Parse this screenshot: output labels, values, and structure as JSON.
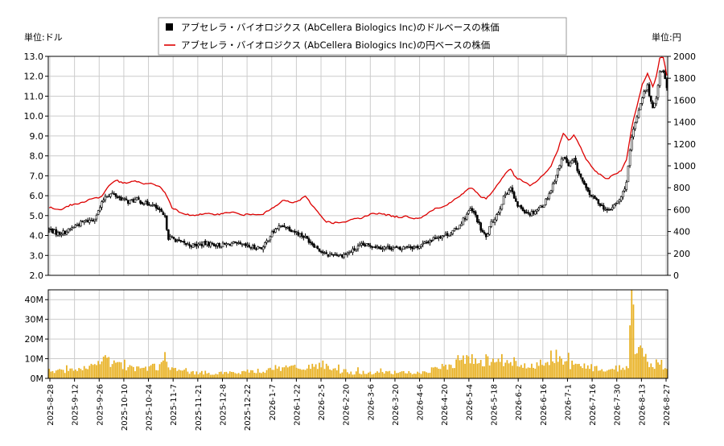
{
  "chart_data": {
    "type": "line",
    "legend": {
      "placement": "top-center",
      "items": [
        {
          "label": "アブセレラ・バイオロジクス (AbCellera Biologics Inc)のドルベースの株価",
          "color": "#000000",
          "marker": "square"
        },
        {
          "label": "アブセレラ・バイオロジクス (AbCellera Biologics Inc)の円ベースの株価",
          "color": "#dd0000",
          "marker": "line"
        }
      ]
    },
    "left_unit": "単位:ドル",
    "right_unit": "単位:円",
    "y_left": {
      "range": [
        2.0,
        13.0
      ],
      "ticks": [
        "2.0",
        "3.0",
        "4.0",
        "5.0",
        "6.0",
        "7.0",
        "8.0",
        "9.0",
        "10.0",
        "11.0",
        "12.0",
        "13.0"
      ]
    },
    "y_right": {
      "range": [
        0,
        2000
      ],
      "ticks": [
        "0",
        "200",
        "400",
        "600",
        "800",
        "1000",
        "1200",
        "1400",
        "1600",
        "1800",
        "2000"
      ]
    },
    "volume_axis": {
      "range": [
        0,
        45000000
      ],
      "ticks": [
        "0M",
        "10M",
        "20M",
        "30M",
        "40M"
      ]
    },
    "x_ticks": [
      "2025-8-28",
      "2025-9-12",
      "2025-9-26",
      "2025-10-10",
      "2025-10-24",
      "2025-11-7",
      "2025-11-21",
      "2025-12-8",
      "2025-12-22",
      "2026-1-7",
      "2026-1-22",
      "2026-2-5",
      "2026-2-20",
      "2026-3-6",
      "2026-3-20",
      "2026-4-6",
      "2026-4-20",
      "2026-5-4",
      "2026-5-18",
      "2026-6-2",
      "2026-6-16",
      "2026-7-1",
      "2026-7-16",
      "2026-7-30",
      "2026-8-13",
      "2026-8-27"
    ],
    "usd_anchors": [
      [
        0,
        4.3
      ],
      [
        5,
        4.1
      ],
      [
        10,
        4.2
      ],
      [
        15,
        4.5
      ],
      [
        20,
        4.7
      ],
      [
        25,
        4.8
      ],
      [
        28,
        5.2
      ],
      [
        32,
        6.0
      ],
      [
        36,
        6.1
      ],
      [
        40,
        5.9
      ],
      [
        45,
        5.7
      ],
      [
        50,
        5.8
      ],
      [
        55,
        5.6
      ],
      [
        58,
        5.6
      ],
      [
        62,
        5.3
      ],
      [
        66,
        4.9
      ],
      [
        68,
        3.9
      ],
      [
        72,
        3.8
      ],
      [
        76,
        3.6
      ],
      [
        82,
        3.5
      ],
      [
        90,
        3.6
      ],
      [
        98,
        3.5
      ],
      [
        104,
        3.6
      ],
      [
        110,
        3.5
      ],
      [
        116,
        3.4
      ],
      [
        122,
        3.4
      ],
      [
        126,
        4.0
      ],
      [
        130,
        4.4
      ],
      [
        134,
        4.5
      ],
      [
        138,
        4.3
      ],
      [
        142,
        4.1
      ],
      [
        146,
        3.9
      ],
      [
        150,
        3.6
      ],
      [
        154,
        3.3
      ],
      [
        158,
        3.0
      ],
      [
        162,
        3.1
      ],
      [
        166,
        3.0
      ],
      [
        170,
        3.1
      ],
      [
        174,
        3.3
      ],
      [
        178,
        3.5
      ],
      [
        184,
        3.5
      ],
      [
        190,
        3.4
      ],
      [
        196,
        3.4
      ],
      [
        200,
        3.3
      ],
      [
        204,
        3.5
      ],
      [
        208,
        3.4
      ],
      [
        212,
        3.5
      ],
      [
        216,
        3.7
      ],
      [
        220,
        3.9
      ],
      [
        224,
        4.0
      ],
      [
        228,
        4.1
      ],
      [
        232,
        4.3
      ],
      [
        236,
        4.8
      ],
      [
        240,
        5.3
      ],
      [
        243,
        5.0
      ],
      [
        246,
        4.3
      ],
      [
        249,
        3.9
      ],
      [
        252,
        4.6
      ],
      [
        256,
        5.2
      ],
      [
        260,
        6.1
      ],
      [
        263,
        6.4
      ],
      [
        266,
        5.6
      ],
      [
        270,
        5.3
      ],
      [
        274,
        5.1
      ],
      [
        278,
        5.3
      ],
      [
        282,
        5.6
      ],
      [
        286,
        6.3
      ],
      [
        290,
        7.3
      ],
      [
        293,
        8.0
      ],
      [
        296,
        7.5
      ],
      [
        299,
        7.8
      ],
      [
        302,
        7.1
      ],
      [
        306,
        6.3
      ],
      [
        310,
        5.9
      ],
      [
        314,
        5.6
      ],
      [
        318,
        5.2
      ],
      [
        322,
        5.5
      ],
      [
        326,
        5.9
      ],
      [
        329,
        6.7
      ],
      [
        332,
        8.9
      ],
      [
        335,
        10.0
      ],
      [
        338,
        11.0
      ],
      [
        341,
        11.5
      ],
      [
        344,
        10.3
      ],
      [
        346,
        11.0
      ],
      [
        348,
        12.2
      ],
      [
        350,
        12.3
      ],
      [
        352,
        11.5
      ]
    ],
    "jpy_anchors": [
      [
        0,
        620
      ],
      [
        6,
        600
      ],
      [
        12,
        640
      ],
      [
        18,
        660
      ],
      [
        24,
        700
      ],
      [
        28,
        710
      ],
      [
        30,
        720
      ],
      [
        34,
        820
      ],
      [
        38,
        870
      ],
      [
        42,
        840
      ],
      [
        46,
        850
      ],
      [
        50,
        860
      ],
      [
        54,
        830
      ],
      [
        58,
        840
      ],
      [
        62,
        820
      ],
      [
        66,
        760
      ],
      [
        70,
        620
      ],
      [
        76,
        560
      ],
      [
        82,
        550
      ],
      [
        90,
        560
      ],
      [
        98,
        560
      ],
      [
        104,
        580
      ],
      [
        110,
        550
      ],
      [
        116,
        560
      ],
      [
        122,
        560
      ],
      [
        126,
        600
      ],
      [
        130,
        640
      ],
      [
        134,
        690
      ],
      [
        138,
        660
      ],
      [
        142,
        680
      ],
      [
        146,
        720
      ],
      [
        150,
        640
      ],
      [
        154,
        560
      ],
      [
        158,
        490
      ],
      [
        162,
        480
      ],
      [
        166,
        480
      ],
      [
        170,
        490
      ],
      [
        174,
        520
      ],
      [
        178,
        520
      ],
      [
        184,
        570
      ],
      [
        190,
        560
      ],
      [
        196,
        540
      ],
      [
        200,
        530
      ],
      [
        204,
        540
      ],
      [
        208,
        520
      ],
      [
        212,
        530
      ],
      [
        216,
        570
      ],
      [
        220,
        610
      ],
      [
        224,
        620
      ],
      [
        228,
        660
      ],
      [
        232,
        700
      ],
      [
        236,
        750
      ],
      [
        240,
        800
      ],
      [
        243,
        770
      ],
      [
        246,
        720
      ],
      [
        249,
        700
      ],
      [
        252,
        750
      ],
      [
        256,
        840
      ],
      [
        260,
        930
      ],
      [
        263,
        970
      ],
      [
        266,
        890
      ],
      [
        270,
        860
      ],
      [
        274,
        820
      ],
      [
        278,
        860
      ],
      [
        282,
        920
      ],
      [
        286,
        1000
      ],
      [
        290,
        1150
      ],
      [
        293,
        1300
      ],
      [
        296,
        1230
      ],
      [
        299,
        1280
      ],
      [
        302,
        1200
      ],
      [
        306,
        1060
      ],
      [
        310,
        970
      ],
      [
        314,
        920
      ],
      [
        318,
        880
      ],
      [
        322,
        920
      ],
      [
        326,
        960
      ],
      [
        329,
        1050
      ],
      [
        332,
        1350
      ],
      [
        335,
        1550
      ],
      [
        338,
        1740
      ],
      [
        341,
        1850
      ],
      [
        344,
        1720
      ],
      [
        346,
        1820
      ],
      [
        348,
        1990
      ],
      [
        350,
        1990
      ],
      [
        352,
        1830
      ]
    ],
    "volume_anchors_M": [
      [
        0,
        4
      ],
      [
        10,
        4
      ],
      [
        20,
        5
      ],
      [
        28,
        7
      ],
      [
        32,
        11
      ],
      [
        36,
        8
      ],
      [
        40,
        7
      ],
      [
        46,
        6
      ],
      [
        52,
        5
      ],
      [
        58,
        6
      ],
      [
        64,
        7
      ],
      [
        66,
        12
      ],
      [
        68,
        5
      ],
      [
        74,
        4
      ],
      [
        82,
        3
      ],
      [
        90,
        3
      ],
      [
        100,
        3
      ],
      [
        110,
        3
      ],
      [
        116,
        4
      ],
      [
        122,
        4
      ],
      [
        126,
        6
      ],
      [
        130,
        5
      ],
      [
        136,
        6
      ],
      [
        142,
        5
      ],
      [
        148,
        6
      ],
      [
        154,
        8
      ],
      [
        158,
        6
      ],
      [
        162,
        4
      ],
      [
        168,
        4
      ],
      [
        174,
        3
      ],
      [
        180,
        3
      ],
      [
        190,
        3
      ],
      [
        200,
        3
      ],
      [
        206,
        3
      ],
      [
        210,
        3
      ],
      [
        216,
        4
      ],
      [
        222,
        5
      ],
      [
        228,
        7
      ],
      [
        232,
        9
      ],
      [
        236,
        11
      ],
      [
        240,
        10
      ],
      [
        244,
        9
      ],
      [
        248,
        10
      ],
      [
        252,
        10
      ],
      [
        256,
        11
      ],
      [
        260,
        9
      ],
      [
        264,
        9
      ],
      [
        268,
        7
      ],
      [
        272,
        6
      ],
      [
        276,
        6
      ],
      [
        280,
        9
      ],
      [
        284,
        11
      ],
      [
        288,
        12
      ],
      [
        292,
        9
      ],
      [
        296,
        8
      ],
      [
        300,
        7
      ],
      [
        306,
        6
      ],
      [
        312,
        5
      ],
      [
        318,
        5
      ],
      [
        322,
        5
      ],
      [
        326,
        6
      ],
      [
        330,
        7
      ],
      [
        332,
        46
      ],
      [
        334,
        15
      ],
      [
        336,
        17
      ],
      [
        338,
        13
      ],
      [
        340,
        10
      ],
      [
        344,
        7
      ],
      [
        348,
        9
      ],
      [
        352,
        6
      ]
    ]
  }
}
